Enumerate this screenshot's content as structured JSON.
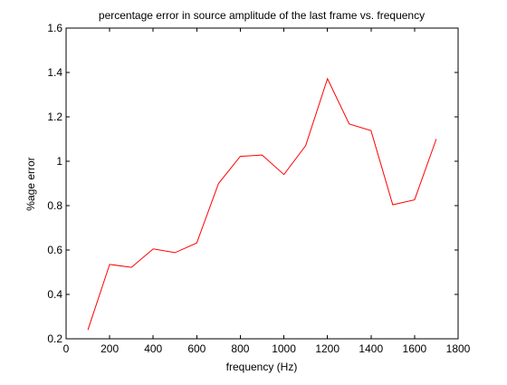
{
  "chart_data": {
    "type": "line",
    "title": "percentage error in source amplitude of the last frame vs. frequency",
    "xlabel": "frequency (Hz)",
    "ylabel": "%age error",
    "xlim": [
      0,
      1800
    ],
    "ylim": [
      0.2,
      1.6
    ],
    "xticks": [
      0,
      200,
      400,
      600,
      800,
      1000,
      1200,
      1400,
      1600,
      1800
    ],
    "yticks": [
      0.2,
      0.4,
      0.6,
      0.8,
      1,
      1.2,
      1.4,
      1.6
    ],
    "xtick_labels": [
      "0",
      "200",
      "400",
      "600",
      "800",
      "1000",
      "1200",
      "1400",
      "1600",
      "1800"
    ],
    "ytick_labels": [
      "0.2",
      "0.4",
      "0.6",
      "0.8",
      "1",
      "1.2",
      "1.4",
      "1.6"
    ],
    "grid": false,
    "legend": "none",
    "series": [
      {
        "color": "#ff0000",
        "x": [
          100,
          200,
          300,
          400,
          500,
          600,
          700,
          800,
          900,
          1000,
          1100,
          1200,
          1300,
          1400,
          1500,
          1600,
          1700
        ],
        "y": [
          0.24,
          0.535,
          0.522,
          0.605,
          0.588,
          0.632,
          0.9,
          1.022,
          1.028,
          0.94,
          1.07,
          1.372,
          1.168,
          1.138,
          0.804,
          0.826,
          1.1
        ]
      }
    ]
  }
}
